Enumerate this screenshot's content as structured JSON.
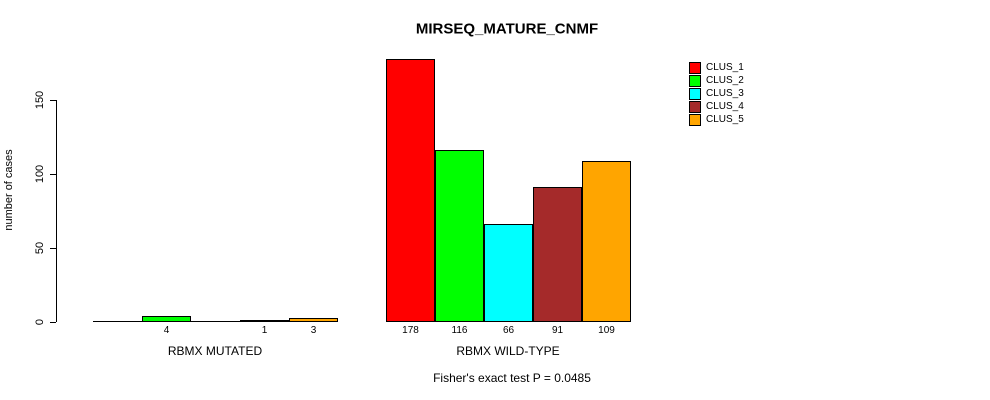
{
  "title": "MIRSEQ_MATURE_CNMF",
  "y_axis": {
    "label": "number of cases",
    "ticks": [
      "0",
      "50",
      "100",
      "150"
    ]
  },
  "legend": {
    "entries": [
      {
        "label": "CLUS_1",
        "color": "#FF0000"
      },
      {
        "label": "CLUS_2",
        "color": "#00FF00"
      },
      {
        "label": "CLUS_3",
        "color": "#00FFFF"
      },
      {
        "label": "CLUS_4",
        "color": "#A52A2A"
      },
      {
        "label": "CLUS_5",
        "color": "#FFA500"
      }
    ]
  },
  "footer": {
    "fisher_text": "Fisher's exact test P = 0.0485"
  },
  "chart_data": {
    "type": "bar",
    "title": "MIRSEQ_MATURE_CNMF",
    "xlabel": "",
    "ylabel": "number of cases",
    "ylim": [
      0,
      178
    ],
    "yticks": [
      0,
      50,
      100,
      150
    ],
    "grid": false,
    "legend_position": "right",
    "series": [
      {
        "name": "CLUS_1",
        "color": "#FF0000"
      },
      {
        "name": "CLUS_2",
        "color": "#00FF00"
      },
      {
        "name": "CLUS_3",
        "color": "#00FFFF"
      },
      {
        "name": "CLUS_4",
        "color": "#A52A2A"
      },
      {
        "name": "CLUS_5",
        "color": "#FFA500"
      }
    ],
    "groups": [
      {
        "label": "RBMX MUTATED",
        "values": [
          0,
          4,
          0,
          1,
          3
        ],
        "bar_labels": [
          "",
          "4",
          "",
          "1",
          "3"
        ]
      },
      {
        "label": "RBMX WILD-TYPE",
        "values": [
          178,
          116,
          66,
          91,
          109
        ],
        "bar_labels": [
          "178",
          "116",
          "66",
          "91",
          "109"
        ]
      }
    ],
    "annotation": "Fisher's exact test P = 0.0485"
  }
}
